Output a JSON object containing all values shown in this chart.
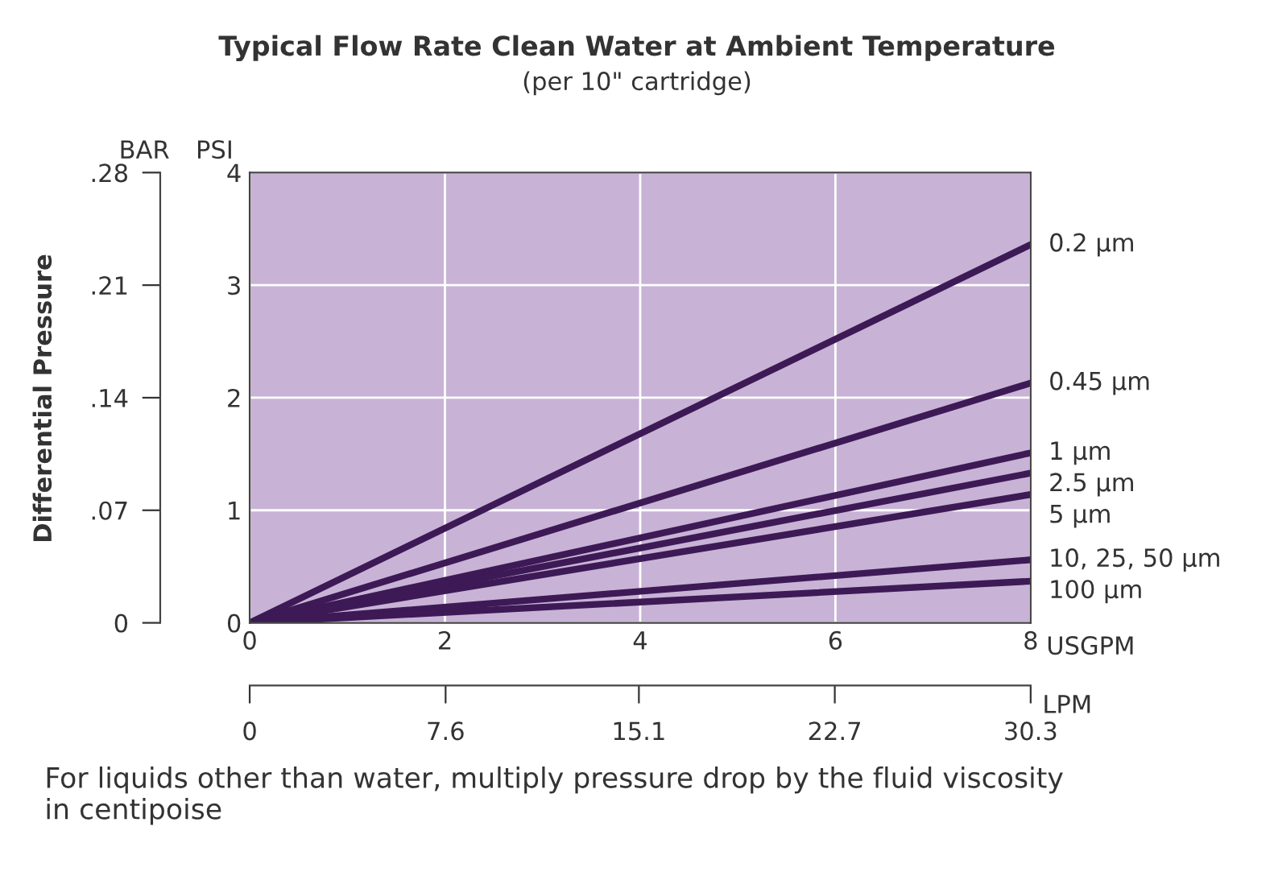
{
  "chart_data": {
    "type": "line",
    "title": "Typical Flow Rate Clean Water at Ambient Temperature",
    "subtitle": "(per 10\" cartridge)",
    "xlabel": "USGPM",
    "ylabel": "PSI",
    "y2label": "BAR",
    "x2label": "LPM",
    "x": [
      0,
      8
    ],
    "series": [
      {
        "name": "0.2 µm",
        "color": "#3d1a56",
        "values": [
          0,
          3.36
        ]
      },
      {
        "name": "0.45 µm",
        "color": "#3d1a56",
        "values": [
          0,
          2.13
        ]
      },
      {
        "name": "1 µm",
        "color": "#3d1a56",
        "values": [
          0,
          1.51
        ]
      },
      {
        "name": "2.5 µm",
        "color": "#3d1a56",
        "values": [
          0,
          1.33
        ]
      },
      {
        "name": "5 µm",
        "color": "#3d1a56",
        "values": [
          0,
          1.14
        ]
      },
      {
        "name": "10, 25, 50 µm",
        "color": "#3d1a56",
        "values": [
          0,
          0.56
        ]
      },
      {
        "name": "100 µm",
        "color": "#3d1a56",
        "values": [
          0,
          0.37
        ]
      }
    ],
    "xlim": [
      0,
      8
    ],
    "xticks": [
      0,
      2,
      4,
      6,
      8
    ],
    "ylim": [
      0,
      4
    ],
    "yticks": [
      0,
      1,
      2,
      3,
      4
    ],
    "y2lim": [
      0,
      0.28
    ],
    "y2ticks": [
      0,
      {
        "value": 0.07,
        "label": ".07"
      },
      {
        "value": 0.14,
        "label": ".14"
      },
      {
        "value": 0.21,
        "label": ".21"
      },
      {
        "value": 0.28,
        "label": ".28"
      }
    ],
    "x2lim": [
      0,
      30.3
    ],
    "x2ticks": [
      0,
      7.6,
      15.1,
      22.7,
      30.3
    ],
    "grid": true,
    "legend": false,
    "marker": "none",
    "line_style": "solid",
    "annotations": [
      "Differential Pressure",
      "For liquids other than water, multiply pressure drop by the fluid viscosity in centipoise"
    ]
  }
}
